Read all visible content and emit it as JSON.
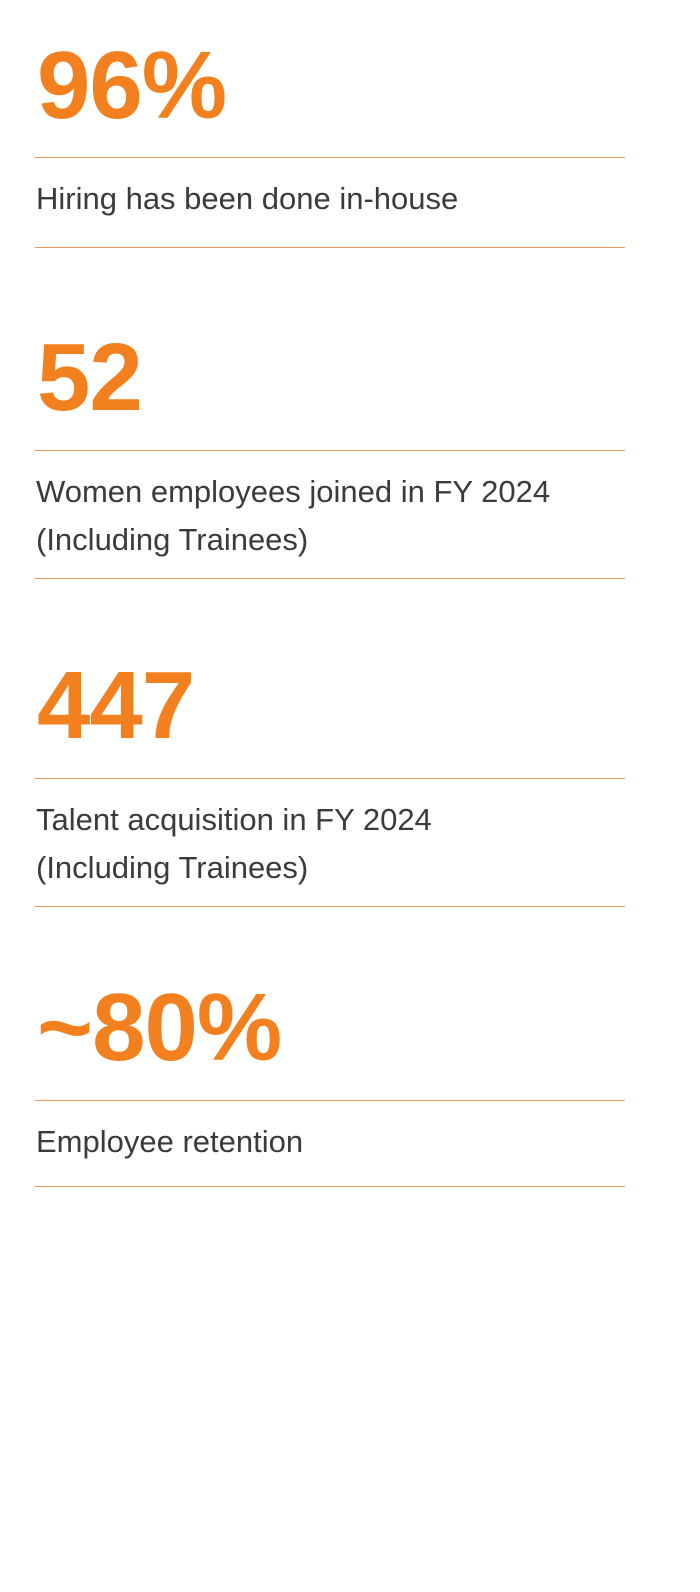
{
  "stats": [
    {
      "value": "96%",
      "description": [
        "Hiring has been done in-house"
      ]
    },
    {
      "value": "52",
      "description": [
        "Women employees joined in FY 2024",
        "(Including Trainees)"
      ]
    },
    {
      "value": "447",
      "description": [
        "Talent acquisition in FY 2024",
        "(Including Trainees)"
      ]
    },
    {
      "value": "~80%",
      "description": [
        "Employee retention"
      ]
    }
  ],
  "colors": {
    "accent": "#f2801f",
    "rule": "#f09a55",
    "text": "#3b3b3b",
    "background": "#ffffff"
  }
}
